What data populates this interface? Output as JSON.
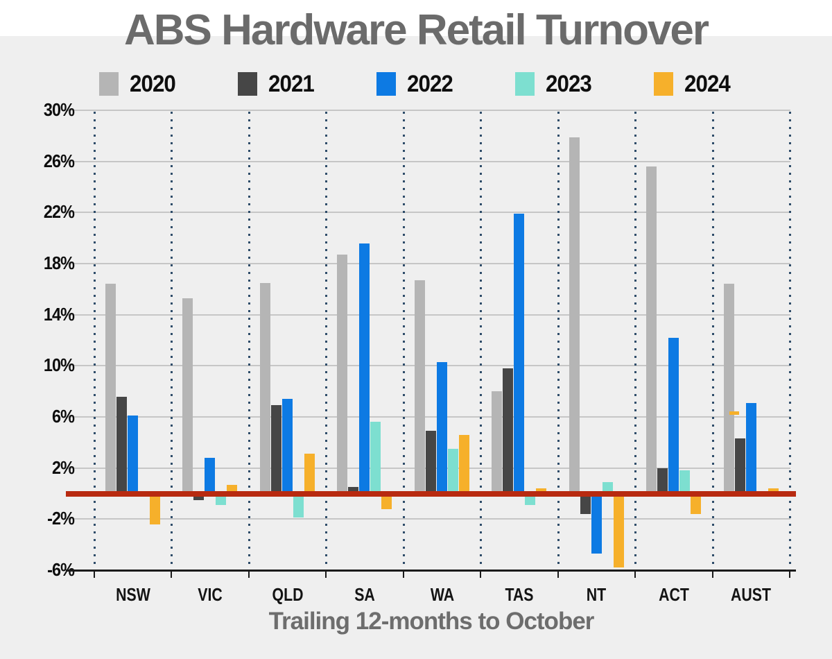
{
  "page": {
    "title": "ABS Hardware Retail Turnover",
    "caption": "Trailing 12-months to October"
  },
  "legend": [
    {
      "label": "2020",
      "color": "#b5b5b5"
    },
    {
      "label": "2021",
      "color": "#464646"
    },
    {
      "label": "2022",
      "color": "#0d7ae3"
    },
    {
      "label": "2023",
      "color": "#7ddfd0"
    },
    {
      "label": "2024",
      "color": "#f6b02b"
    }
  ],
  "chart_data": {
    "type": "bar",
    "title": "ABS Hardware Retail Turnover",
    "xlabel": "Trailing 12-months to October",
    "ylabel": "",
    "categories": [
      "NSW",
      "VIC",
      "QLD",
      "SA",
      "WA",
      "TAS",
      "NT",
      "ACT",
      "AUST"
    ],
    "series": [
      {
        "name": "2020",
        "color": "#b5b5b5",
        "values": [
          16.4,
          15.3,
          16.5,
          18.7,
          16.7,
          8.0,
          27.9,
          25.6,
          16.4
        ]
      },
      {
        "name": "2021",
        "color": "#464646",
        "values": [
          7.6,
          -0.5,
          6.9,
          0.5,
          4.9,
          9.8,
          -1.6,
          2.0,
          4.3
        ]
      },
      {
        "name": "2022",
        "color": "#0d7ae3",
        "values": [
          6.1,
          2.8,
          7.4,
          19.6,
          10.3,
          21.9,
          -4.7,
          12.2,
          7.1
        ]
      },
      {
        "name": "2023",
        "color": "#7ddfd0",
        "values": [
          0,
          -0.9,
          -1.9,
          5.6,
          3.5,
          -0.9,
          0.9,
          1.8,
          0
        ]
      },
      {
        "name": "2024",
        "color": "#f6b02b",
        "values": [
          -2.4,
          0.7,
          3.1,
          -1.2,
          4.6,
          0.4,
          -5.8,
          -1.6,
          0.4
        ]
      }
    ],
    "yticks": {
      "labels": [
        "30%",
        "26%",
        "22%",
        "18%",
        "14%",
        "10%",
        "6%",
        "2%",
        "-2%",
        "-6%"
      ],
      "values": [
        30,
        26,
        22,
        18,
        14,
        10,
        6,
        2,
        -2,
        -6
      ]
    },
    "ylim": [
      -6,
      30
    ],
    "grid": "horizontal-solid-and-vertical-dotted",
    "legend_position": "top",
    "zero_line_color": "#b82a10",
    "annotations": [
      {
        "category": "AUST",
        "series": "2024",
        "value": 6.3,
        "shape": "dash",
        "color": "#f6b02b"
      }
    ]
  }
}
